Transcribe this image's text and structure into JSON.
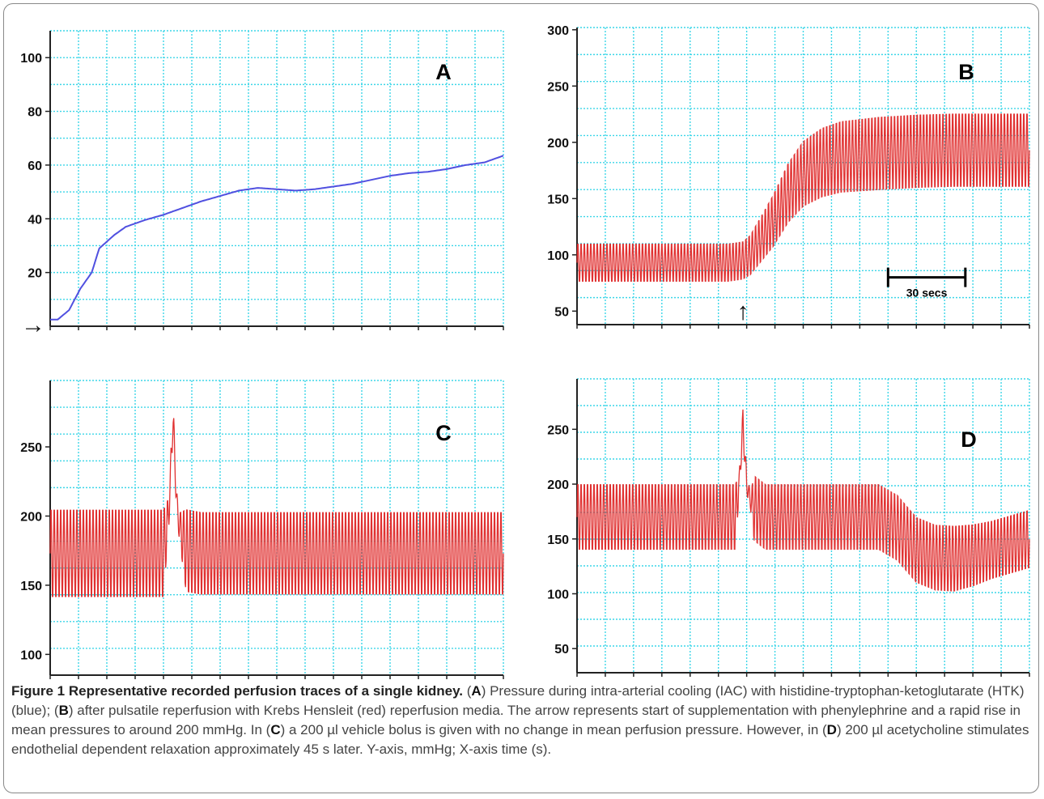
{
  "chart_data": [
    {
      "panel": "A",
      "type": "line",
      "ylim": [
        0,
        110
      ],
      "yticks": [
        20,
        40,
        60,
        80,
        100
      ],
      "color": "#5050e0",
      "marker": "→",
      "series": [
        {
          "x": [
            0,
            2,
            5,
            8,
            11,
            13,
            17,
            20,
            25,
            30,
            35,
            40,
            45,
            50,
            55,
            60,
            65,
            70,
            75,
            80,
            85,
            90,
            95,
            100,
            105,
            110,
            115,
            120
          ],
          "y": [
            2.5,
            2.5,
            6,
            14,
            20,
            29,
            34,
            37,
            39.5,
            41.5,
            44,
            46.5,
            48.5,
            50.5,
            51.5,
            51,
            50.5,
            51,
            52,
            53,
            54.5,
            56,
            57,
            57.5,
            58.5,
            60,
            61,
            63.5
          ]
        }
      ]
    },
    {
      "panel": "B",
      "type": "line",
      "ylim": [
        38,
        302
      ],
      "yticks": [
        50,
        100,
        150,
        200,
        250,
        300
      ],
      "color": "#e03030",
      "marker": "↑",
      "scale_bar_label": "30 secs",
      "series": [
        {
          "x": [
            0,
            40,
            44,
            46,
            48,
            52,
            56,
            60,
            65,
            70,
            80,
            90,
            100,
            110,
            120
          ],
          "y": [
            93,
            93,
            95,
            100,
            110,
            130,
            155,
            172,
            182,
            187,
            190,
            192,
            193,
            193,
            193
          ],
          "amplitude": [
            19,
            19,
            19,
            20,
            22,
            26,
            30,
            33,
            35,
            36,
            37,
            37,
            37,
            37,
            37
          ]
        }
      ]
    },
    {
      "panel": "C",
      "type": "line",
      "ylim": [
        85,
        298
      ],
      "yticks": [
        100,
        150,
        200,
        250
      ],
      "color": "#e03030",
      "series": [
        {
          "x": [
            0,
            30,
            31.5,
            32.5,
            33.5,
            34,
            36,
            40,
            120
          ],
          "y": [
            173,
            173,
            205,
            272,
            210,
            195,
            175,
            173,
            173
          ],
          "amplitude": [
            36,
            36,
            10,
            15,
            10,
            8,
            34,
            34,
            34
          ]
        }
      ]
    },
    {
      "panel": "D",
      "type": "line",
      "ylim": [
        28,
        296
      ],
      "yticks": [
        50,
        100,
        150,
        200,
        250
      ],
      "color": "#e03030",
      "series": [
        {
          "x": [
            0,
            42,
            43,
            44,
            45,
            46,
            47,
            50,
            80,
            85,
            90,
            95,
            100,
            105,
            110,
            115,
            120
          ],
          "y": [
            170,
            170,
            200,
            255,
            200,
            185,
            178,
            170,
            170,
            160,
            140,
            133,
            132,
            135,
            140,
            145,
            150
          ],
          "amplitude": [
            34,
            34,
            10,
            15,
            10,
            8,
            34,
            34,
            34,
            34,
            34,
            34,
            34,
            32,
            30,
            30,
            30
          ]
        }
      ]
    }
  ],
  "caption": {
    "figure_label": "Figure 1 Representative recorded perfusion traces of a single kidney.",
    "parts": [
      {
        "t": " (",
        "b": false
      },
      {
        "t": "A",
        "b": true
      },
      {
        "t": ") Pressure during intra-arterial cooling (IAC) with histidine-tryptophan-ketoglutarate (HTK) (blue); (",
        "b": false
      },
      {
        "t": "B",
        "b": true
      },
      {
        "t": ") after pulsatile reperfusion with Krebs Hensleit (red) reperfusion media. The arrow represents start of supplementation with phenylephrine and a rapid rise in mean pressures to around 200 mmHg. In (",
        "b": false
      },
      {
        "t": "C",
        "b": true
      },
      {
        "t": ") a 200 µl vehicle bolus is given with no change in mean perfusion pressure. However, in (",
        "b": false
      },
      {
        "t": "D",
        "b": true
      },
      {
        "t": ") 200 µl acetycholine stimulates endothelial dependent relaxation approximately 45 s later. Y-axis, mmHg; X-axis time (s).",
        "b": false
      }
    ]
  }
}
